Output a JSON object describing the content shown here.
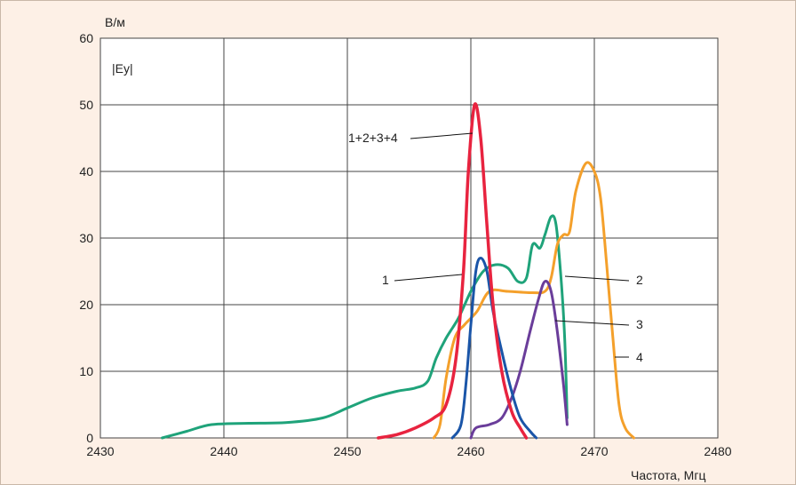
{
  "chart_data": {
    "type": "line",
    "y_unit": "В/м",
    "y_quantity": "|Ey|",
    "xlabel": "Частота, Мгц",
    "xlim": [
      2430,
      2480
    ],
    "ylim": [
      0,
      60
    ],
    "x_ticks": [
      2430,
      2440,
      2450,
      2460,
      2470,
      2480
    ],
    "y_ticks": [
      0,
      10,
      20,
      30,
      40,
      50,
      60
    ],
    "grid": true,
    "series": [
      {
        "name": "1+2+3+4",
        "color": "#e8233f",
        "points": [
          [
            2452.5,
            0
          ],
          [
            2454,
            0.5
          ],
          [
            2455.5,
            1.5
          ],
          [
            2457,
            3
          ],
          [
            2458,
            5
          ],
          [
            2458.8,
            12
          ],
          [
            2459.4,
            25
          ],
          [
            2459.8,
            40
          ],
          [
            2460.3,
            50
          ],
          [
            2460.8,
            45
          ],
          [
            2461.3,
            32
          ],
          [
            2461.8,
            20
          ],
          [
            2462.5,
            10
          ],
          [
            2463.3,
            4
          ],
          [
            2464,
            1.5
          ],
          [
            2464.5,
            0
          ]
        ]
      },
      {
        "name": "1",
        "color": "#1a55a8",
        "points": [
          [
            2458.5,
            0
          ],
          [
            2459.2,
            2
          ],
          [
            2459.6,
            8
          ],
          [
            2460,
            17
          ],
          [
            2460.4,
            25
          ],
          [
            2460.8,
            27
          ],
          [
            2461.3,
            25
          ],
          [
            2461.8,
            19
          ],
          [
            2462.5,
            13
          ],
          [
            2463.3,
            7
          ],
          [
            2464,
            3
          ],
          [
            2464.8,
            1
          ],
          [
            2465.3,
            0
          ]
        ]
      },
      {
        "name": "2",
        "color": "#1fa37a",
        "points": [
          [
            2435,
            0
          ],
          [
            2437,
            1
          ],
          [
            2439,
            2
          ],
          [
            2442,
            2.2
          ],
          [
            2445,
            2.3
          ],
          [
            2448,
            3
          ],
          [
            2450,
            4.5
          ],
          [
            2452,
            6
          ],
          [
            2454,
            7
          ],
          [
            2455.5,
            7.5
          ],
          [
            2456.5,
            8.5
          ],
          [
            2457.2,
            12
          ],
          [
            2458,
            15
          ],
          [
            2459,
            18
          ],
          [
            2460,
            22
          ],
          [
            2461,
            25
          ],
          [
            2462,
            26
          ],
          [
            2463,
            25.5
          ],
          [
            2463.8,
            23.5
          ],
          [
            2464.5,
            24
          ],
          [
            2465,
            29
          ],
          [
            2465.6,
            28.5
          ],
          [
            2466,
            30.5
          ],
          [
            2466.5,
            33.2
          ],
          [
            2466.9,
            32
          ],
          [
            2467.3,
            24
          ],
          [
            2467.6,
            15
          ],
          [
            2467.8,
            3
          ]
        ]
      },
      {
        "name": "3",
        "color": "#6a3d9a",
        "points": [
          [
            2460,
            0
          ],
          [
            2460.4,
            1.5
          ],
          [
            2461.5,
            2
          ],
          [
            2462.5,
            3
          ],
          [
            2463.3,
            6
          ],
          [
            2464,
            10
          ],
          [
            2464.8,
            16
          ],
          [
            2465.5,
            21
          ],
          [
            2466,
            23.5
          ],
          [
            2466.5,
            22
          ],
          [
            2467,
            16
          ],
          [
            2467.5,
            8
          ],
          [
            2467.8,
            2
          ]
        ]
      },
      {
        "name": "4",
        "color": "#f4a02b",
        "points": [
          [
            2457,
            0
          ],
          [
            2457.5,
            2
          ],
          [
            2458,
            9
          ],
          [
            2458.7,
            15
          ],
          [
            2459.5,
            17
          ],
          [
            2460.5,
            19
          ],
          [
            2461.5,
            22
          ],
          [
            2463,
            22
          ],
          [
            2465,
            21.8
          ],
          [
            2466,
            22
          ],
          [
            2466.5,
            24
          ],
          [
            2467,
            29
          ],
          [
            2467.5,
            30.5
          ],
          [
            2468,
            31
          ],
          [
            2468.5,
            37
          ],
          [
            2469.3,
            41.2
          ],
          [
            2470,
            40
          ],
          [
            2470.5,
            36
          ],
          [
            2471,
            26
          ],
          [
            2471.5,
            15
          ],
          [
            2472,
            5
          ],
          [
            2472.5,
            1.5
          ],
          [
            2473.2,
            0
          ]
        ]
      }
    ]
  }
}
